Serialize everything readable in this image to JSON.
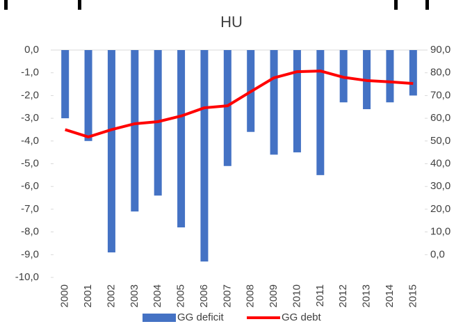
{
  "chart_data": {
    "type": "bar",
    "title": "HU",
    "categories": [
      "2000",
      "2001",
      "2002",
      "2003",
      "2004",
      "2005",
      "2006",
      "2007",
      "2008",
      "2009",
      "2010",
      "2011",
      "2012",
      "2013",
      "2014",
      "2015"
    ],
    "series": [
      {
        "name": "GG deficit",
        "type": "bar",
        "color": "#4472c4",
        "values": [
          -3.0,
          -4.0,
          -8.9,
          -7.1,
          -6.4,
          -7.8,
          -9.3,
          -5.1,
          -3.6,
          -4.6,
          -4.5,
          -5.5,
          -2.3,
          -2.6,
          -2.3,
          -2.0
        ]
      },
      {
        "name": "GG debt",
        "type": "line",
        "axis": "y2",
        "color": "#ff0000",
        "values": [
          55,
          51.8,
          55,
          57.6,
          58.5,
          61,
          64.6,
          65.5,
          71.7,
          77.8,
          80.5,
          80.8,
          78,
          76.6,
          76,
          75.3
        ]
      }
    ],
    "ylim": [
      -10,
      0
    ],
    "yticks": [
      {
        "value": 0,
        "label": "0,0"
      },
      {
        "value": -1,
        "label": "-1,0"
      },
      {
        "value": -2,
        "label": "-2,0"
      },
      {
        "value": -3,
        "label": "-3,0"
      },
      {
        "value": -4,
        "label": "-4,0"
      },
      {
        "value": -5,
        "label": "-5,0"
      },
      {
        "value": -6,
        "label": "-6,0"
      },
      {
        "value": -7,
        "label": "-7,0"
      },
      {
        "value": -8,
        "label": "-8,0"
      },
      {
        "value": -9,
        "label": "-9,0"
      },
      {
        "value": -10,
        "label": "-10,0"
      }
    ],
    "y2lim": [
      -10,
      90
    ],
    "y2ticks": [
      {
        "value": 90,
        "label": "90,0"
      },
      {
        "value": 80,
        "label": "80,0"
      },
      {
        "value": 70,
        "label": "70,0"
      },
      {
        "value": 60,
        "label": "60,0"
      },
      {
        "value": 50,
        "label": "50,0"
      },
      {
        "value": 40,
        "label": "40,0"
      },
      {
        "value": 30,
        "label": "30,0"
      },
      {
        "value": 20,
        "label": "20,0"
      },
      {
        "value": 10,
        "label": "10,0"
      },
      {
        "value": 0,
        "label": "0,0"
      }
    ],
    "legend": "bottom"
  }
}
